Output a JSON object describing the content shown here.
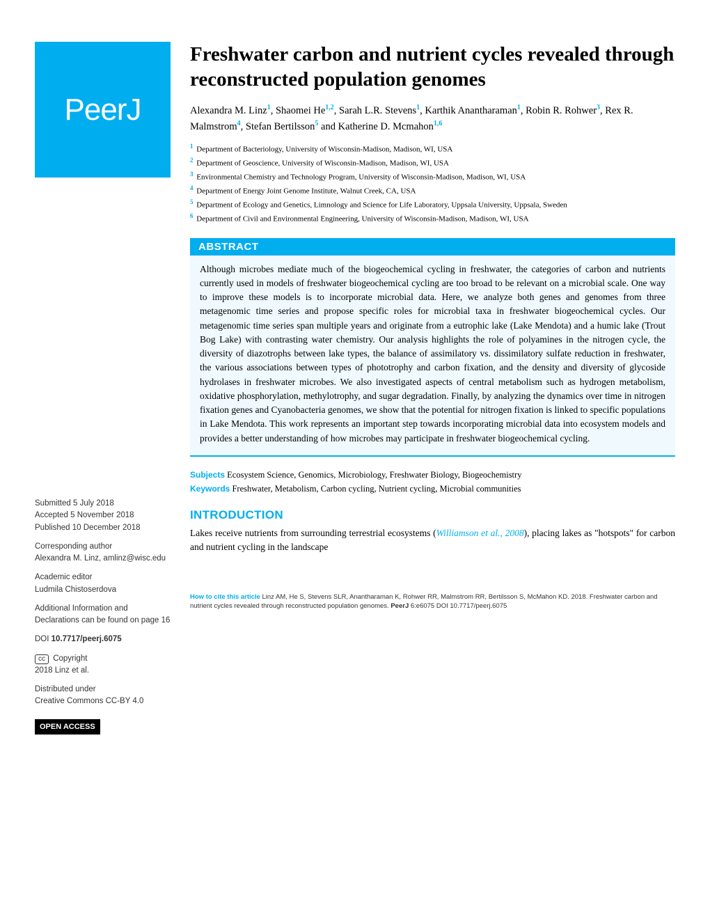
{
  "logo": {
    "text": "PeerJ"
  },
  "title": "Freshwater carbon and nutrient cycles revealed through reconstructed population genomes",
  "authors_html": "Alexandra M. Linz<sup>1</sup>, Shaomei He<sup>1,2</sup>, Sarah L.R. Stevens<sup>1</sup>, Karthik Anantharaman<sup>1</sup>, Robin R. Rohwer<sup>3</sup>, Rex R. Malmstrom<sup>4</sup>, Stefan Bertilsson<sup>5</sup> and Katherine D. Mcmahon<sup>1,6</sup>",
  "affiliations": [
    {
      "num": "1",
      "text": "Department of Bacteriology, University of Wisconsin-Madison, Madison, WI, USA"
    },
    {
      "num": "2",
      "text": "Department of Geoscience, University of Wisconsin-Madison, Madison, WI, USA"
    },
    {
      "num": "3",
      "text": "Environmental Chemistry and Technology Program, University of Wisconsin-Madison, Madison, WI, USA"
    },
    {
      "num": "4",
      "text": "Department of Energy Joint Genome Institute, Walnut Creek, CA, USA"
    },
    {
      "num": "5",
      "text": "Department of Ecology and Genetics, Limnology and Science for Life Laboratory, Uppsala University, Uppsala, Sweden"
    },
    {
      "num": "6",
      "text": "Department of Civil and Environmental Engineering, University of Wisconsin-Madison, Madison, WI, USA"
    }
  ],
  "abstract": {
    "heading": "ABSTRACT",
    "text": "Although microbes mediate much of the biogeochemical cycling in freshwater, the categories of carbon and nutrients currently used in models of freshwater biogeochemical cycling are too broad to be relevant on a microbial scale. One way to improve these models is to incorporate microbial data. Here, we analyze both genes and genomes from three metagenomic time series and propose specific roles for microbial taxa in freshwater biogeochemical cycles. Our metagenomic time series span multiple years and originate from a eutrophic lake (Lake Mendota) and a humic lake (Trout Bog Lake) with contrasting water chemistry. Our analysis highlights the role of polyamines in the nitrogen cycle, the diversity of diazotrophs between lake types, the balance of assimilatory vs. dissimilatory sulfate reduction in freshwater, the various associations between types of phototrophy and carbon fixation, and the density and diversity of glycoside hydrolases in freshwater microbes. We also investigated aspects of central metabolism such as hydrogen metabolism, oxidative phosphorylation, methylotrophy, and sugar degradation. Finally, by analyzing the dynamics over time in nitrogen fixation genes and Cyanobacteria genomes, we show that the potential for nitrogen fixation is linked to specific populations in Lake Mendota. This work represents an important step towards incorporating microbial data into ecosystem models and provides a better understanding of how microbes may participate in freshwater biogeochemical cycling."
  },
  "subjects": {
    "label": "Subjects",
    "text": "Ecosystem Science, Genomics, Microbiology, Freshwater Biology, Biogeochemistry"
  },
  "keywords": {
    "label": "Keywords",
    "text": "Freshwater, Metabolism, Carbon cycling, Nutrient cycling, Microbial communities"
  },
  "intro": {
    "heading": "INTRODUCTION",
    "text_pre": "Lakes receive nutrients from surrounding terrestrial ecosystems (",
    "citation": "Williamson et al., 2008",
    "text_post": "), placing lakes as \"hotspots\" for carbon and nutrient cycling in the landscape"
  },
  "sidebar": {
    "submitted_label": "Submitted",
    "submitted": "5 July 2018",
    "accepted_label": "Accepted",
    "accepted": "5 November 2018",
    "published_label": "Published",
    "published": "10 December 2018",
    "corresponding_label": "Corresponding author",
    "corresponding": "Alexandra M. Linz, amlinz@wisc.edu",
    "editor_label": "Academic editor",
    "editor": "Ludmila Chistoserdova",
    "additional_info": "Additional Information and Declarations can be found on page 16",
    "doi_label": "DOI",
    "doi": "10.7717/peerj.6075",
    "copyright_label": "Copyright",
    "copyright": "2018 Linz et al.",
    "distributed_label": "Distributed under",
    "distributed": "Creative Commons CC-BY 4.0",
    "open_access": "OPEN ACCESS",
    "cc_symbol": "cc"
  },
  "footer": {
    "label": "How to cite this article",
    "text": " Linz AM, He S, Stevens SLR, Anantharaman K, Rohwer RR, Malmstrom RR, Bertilsson S, McMahon KD. 2018. Freshwater carbon and nutrient cycles revealed through reconstructed population genomes. ",
    "journal": "PeerJ",
    "ref": " 6:e6075 DOI 10.7717/peerj.6075"
  },
  "colors": {
    "brand": "#00aeef",
    "abstract_bg": "#f0f9fd",
    "text": "#000000",
    "sidebar_text": "#333333"
  }
}
